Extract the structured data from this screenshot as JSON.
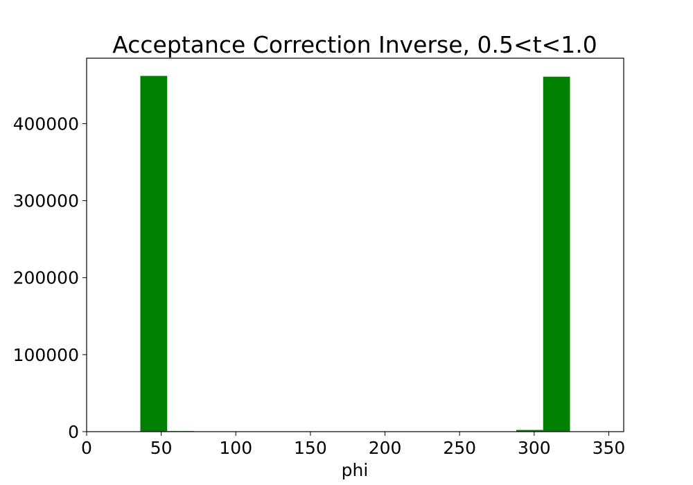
{
  "chart_data": {
    "type": "bar",
    "title": "Acceptance Correction Inverse, 0.5<t<1.0",
    "xlabel": "phi",
    "ylabel": "",
    "xlim": [
      0,
      360
    ],
    "ylim": [
      0,
      485000
    ],
    "bin_width": 18,
    "xticks": [
      0,
      50,
      100,
      150,
      200,
      250,
      300,
      350
    ],
    "yticks": [
      0,
      100000,
      200000,
      300000,
      400000
    ],
    "x_tick_labels": [
      "0",
      "50",
      "100",
      "150",
      "200",
      "250",
      "300",
      "350"
    ],
    "y_tick_labels": [
      "0",
      "100000",
      "200000",
      "300000",
      "400000"
    ],
    "bars": [
      {
        "x_start": 36,
        "x_end": 54,
        "value": 462000
      },
      {
        "x_start": 54,
        "x_end": 72,
        "value": 700
      },
      {
        "x_start": 288,
        "x_end": 306,
        "value": 2200
      },
      {
        "x_start": 306,
        "x_end": 324,
        "value": 461000
      }
    ],
    "bar_color": "#008000",
    "grid": false,
    "legend": "none"
  }
}
